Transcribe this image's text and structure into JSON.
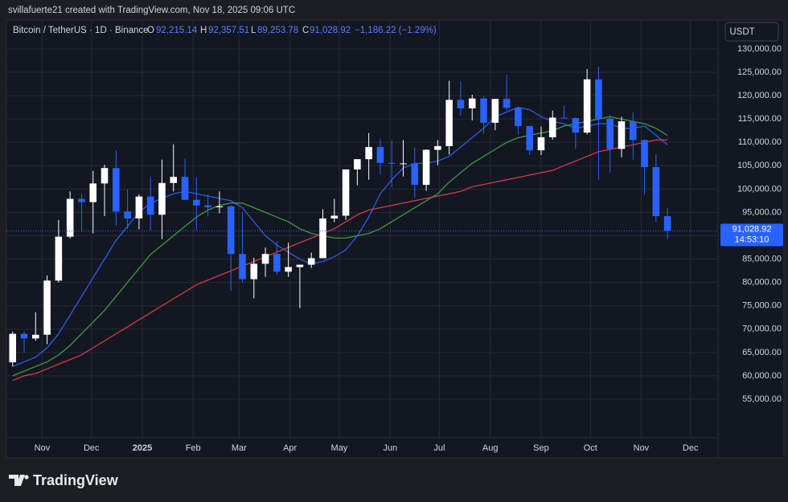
{
  "header": {
    "credit": "svillafuerte21 created with TradingView.com, Nov 18, 2025 09:06 UTC"
  },
  "footer": {
    "logo": "TradingView"
  },
  "chart_data": {
    "type": "candlestick",
    "title": "Bitcoin / TetherUS · 1D · Binance",
    "legend": {
      "open_label": "O",
      "open": {
        "value": 92215.14,
        "label": "92,215.14"
      },
      "high_label": "H",
      "high": {
        "value": 92357.51,
        "label": "92,357.51"
      },
      "low_label": "L",
      "low": {
        "value": 89253.78,
        "label": "89,253.78"
      },
      "close_label": "C",
      "close": {
        "value": 91028.92,
        "label": "91,028.92"
      },
      "change": "−1,186.22 (−1.29%)"
    },
    "currency": "USDT",
    "last_price": {
      "value": 91028.92,
      "label": "91,028.92"
    },
    "countdown": "14:53:10",
    "up_color": "#ffffff",
    "down_color": "#2962ff",
    "open": [
      62900,
      69000,
      68000,
      68800,
      80400,
      89800,
      97900,
      97200,
      101200,
      104500,
      95200,
      93700,
      98400,
      94500,
      101300,
      102600,
      97700,
      96500,
      96100,
      96300,
      86100,
      80700,
      84000,
      86100,
      82300,
      83300,
      83800,
      85200,
      93700,
      94300,
      104200,
      106400,
      109000,
      105600,
      105500,
      105500,
      100900,
      108400,
      109200,
      119100,
      117300,
      119400,
      114200,
      119300,
      117400,
      113500,
      108300,
      111100,
      115300,
      115200,
      112100,
      123500,
      115100,
      108600,
      114500,
      110500,
      104700,
      94200
    ],
    "high": [
      69500,
      69500,
      73600,
      81500,
      93400,
      99500,
      98900,
      103900,
      105200,
      108300,
      99900,
      98900,
      102700,
      106300,
      109600,
      106500,
      102500,
      98900,
      99500,
      96500,
      95000,
      85300,
      87500,
      88800,
      88500,
      83600,
      86400,
      95700,
      97900,
      104100,
      105800,
      112000,
      110700,
      110400,
      110500,
      108900,
      108500,
      110500,
      123200,
      123100,
      120200,
      119900,
      119300,
      124500,
      117600,
      113500,
      113400,
      116800,
      117900,
      115400,
      125700,
      126200,
      115900,
      115500,
      116400,
      110700,
      107500,
      96000
    ],
    "low": [
      62000,
      65000,
      67500,
      66800,
      80000,
      89400,
      90800,
      90500,
      94200,
      92200,
      91500,
      91400,
      91200,
      89300,
      99500,
      97700,
      91200,
      94100,
      94800,
      78200,
      80000,
      76600,
      81200,
      81600,
      81200,
      74500,
      83100,
      85200,
      92900,
      93400,
      100800,
      102000,
      103100,
      100400,
      102700,
      98200,
      99600,
      105100,
      107400,
      115700,
      114700,
      112000,
      112600,
      116800,
      111700,
      107300,
      107300,
      110600,
      115100,
      108600,
      111700,
      102000,
      103500,
      106800,
      106300,
      98900,
      93000,
      89250
    ],
    "close": [
      69000,
      68000,
      68800,
      80400,
      89800,
      97900,
      97200,
      101200,
      104500,
      95200,
      93700,
      98400,
      94500,
      101300,
      102600,
      97700,
      96500,
      96100,
      96300,
      86100,
      80700,
      84000,
      86100,
      82300,
      83300,
      83800,
      85200,
      93700,
      94300,
      104200,
      106400,
      109000,
      105600,
      105500,
      105500,
      100900,
      108400,
      109200,
      119100,
      117300,
      119400,
      114200,
      119300,
      117400,
      113500,
      108300,
      111100,
      115300,
      115200,
      112100,
      123500,
      115100,
      108600,
      114500,
      110500,
      104700,
      94200,
      91028.92
    ],
    "lines": [
      {
        "color": "#2f5bea",
        "values": [
          62000,
          63000,
          64000,
          66000,
          69000,
          73000,
          77000,
          81000,
          85000,
          89000,
          92000,
          95000,
          97000,
          98000,
          99000,
          99500,
          99000,
          98500,
          98000,
          97500,
          96000,
          93000,
          90000,
          88000,
          86500,
          85000,
          84000,
          84500,
          85500,
          87000,
          90000,
          94000,
          99000,
          102000,
          104500,
          105500,
          105500,
          106000,
          107000,
          109000,
          111000,
          113000,
          115500,
          116500,
          117500,
          117000,
          115500,
          114500,
          114000,
          113000,
          113500,
          114000,
          114000,
          113000,
          113000,
          113500,
          111500,
          109500
        ]
      },
      {
        "color": "#3f9a45",
        "values": [
          60000,
          61000,
          62000,
          63000,
          64500,
          66500,
          69000,
          71500,
          74000,
          77000,
          80000,
          83000,
          86000,
          88000,
          90000,
          92000,
          94000,
          95500,
          96500,
          97000,
          97000,
          96000,
          95000,
          94000,
          93000,
          91500,
          90500,
          90000,
          89500,
          89500,
          90000,
          90500,
          91500,
          93000,
          94500,
          96000,
          97500,
          99000,
          101500,
          103500,
          105500,
          107000,
          108500,
          110000,
          111000,
          111500,
          112000,
          112500,
          113500,
          114000,
          114500,
          115000,
          115500,
          115000,
          114500,
          114000,
          113000,
          111500
        ]
      },
      {
        "color": "#d83a46",
        "values": [
          59000,
          60000,
          60500,
          61500,
          62500,
          63500,
          64500,
          66000,
          67500,
          69000,
          70500,
          72000,
          73500,
          75000,
          76500,
          78000,
          79500,
          80500,
          81500,
          82500,
          83500,
          84500,
          85500,
          86500,
          87500,
          88500,
          89500,
          90500,
          91500,
          93000,
          94500,
          95500,
          96000,
          96500,
          97000,
          97500,
          98000,
          98500,
          99000,
          99500,
          100500,
          101000,
          101500,
          102000,
          102500,
          103000,
          103500,
          104000,
          105000,
          106000,
          107000,
          108000,
          108500,
          109000,
          109500,
          110000,
          110500,
          110500
        ]
      }
    ],
    "xlim": [
      -0.4,
      61.4
    ],
    "xticks": [
      {
        "value": 2.57,
        "label": "Nov"
      },
      {
        "value": 6.86,
        "label": "Dec"
      },
      {
        "value": 11.29,
        "label": "2025"
      },
      {
        "value": 15.71,
        "label": "Feb"
      },
      {
        "value": 19.71,
        "label": "Mar"
      },
      {
        "value": 24.14,
        "label": "Apr"
      },
      {
        "value": 28.43,
        "label": "May"
      },
      {
        "value": 32.86,
        "label": "Jun"
      },
      {
        "value": 37.14,
        "label": "Jul"
      },
      {
        "value": 41.57,
        "label": "Aug"
      },
      {
        "value": 46,
        "label": "Sep"
      },
      {
        "value": 50.29,
        "label": "Oct"
      },
      {
        "value": 54.71,
        "label": "Nov"
      },
      {
        "value": 59,
        "label": "Dec"
      }
    ],
    "ylim": [
      46740,
      136190
    ],
    "yticks": [
      {
        "value": 55000,
        "label": "55,000.00"
      },
      {
        "value": 60000,
        "label": "60,000.00"
      },
      {
        "value": 65000,
        "label": "65,000.00"
      },
      {
        "value": 70000,
        "label": "70,000.00"
      },
      {
        "value": 75000,
        "label": "75,000.00"
      },
      {
        "value": 80000,
        "label": "80,000.00"
      },
      {
        "value": 85000,
        "label": "85,000.00"
      },
      {
        "value": 90000,
        "label": "90,000.00"
      },
      {
        "value": 95000,
        "label": "95,000.00"
      },
      {
        "value": 100000,
        "label": "100,000.00"
      },
      {
        "value": 105000,
        "label": "105,000.00"
      },
      {
        "value": 110000,
        "label": "110,000.00"
      },
      {
        "value": 115000,
        "label": "115,000.00"
      },
      {
        "value": 120000,
        "label": "120,000.00"
      },
      {
        "value": 125000,
        "label": "125,000.00"
      },
      {
        "value": 130000,
        "label": "130,000.00"
      }
    ],
    "grid": true
  }
}
